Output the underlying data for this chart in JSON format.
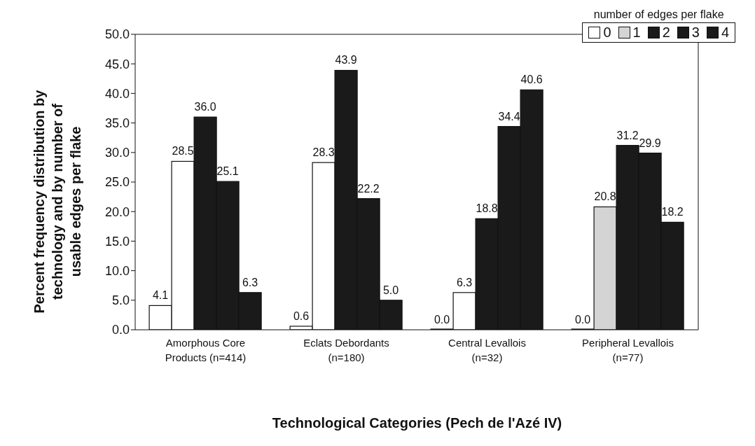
{
  "chart_data": {
    "type": "bar",
    "xlabel": "Technological Categories  (Pech de l'Azé IV)",
    "ylabel": "Percent frequency distribution by technology and by number of usable edges per flake",
    "legend_title": "number of edges per flake",
    "categories": [
      "Amorphous Core\nProducts  (n=414)",
      "Eclats Debordants\n(n=180)",
      "Central Levallois\n(n=32)",
      "Peripheral Levallois\n(n=77)"
    ],
    "series": [
      {
        "name": "0",
        "color": "#ffffff",
        "values": [
          4.1,
          0.6,
          0.0,
          0.0
        ],
        "value_labels": [
          "4.1",
          "0.6",
          "0.0",
          "0.0"
        ]
      },
      {
        "name": "1",
        "color": "#ffffff",
        "colors": [
          "#ffffff",
          "#ffffff",
          "#ffffff",
          "#d4d4d4"
        ],
        "values": [
          28.5,
          28.3,
          6.3,
          20.8
        ],
        "value_labels": [
          "28.5",
          "28.3",
          "6.3",
          "20.8"
        ]
      },
      {
        "name": "2",
        "color": "#1a1a1a",
        "values": [
          36.0,
          43.9,
          18.8,
          31.2
        ],
        "value_labels": [
          "36.0",
          "43.9",
          "18.8",
          "31.2"
        ]
      },
      {
        "name": "3",
        "color": "#1a1a1a",
        "values": [
          25.1,
          22.2,
          34.4,
          29.9
        ],
        "value_labels": [
          "25.1",
          "22.2",
          "34.4",
          "29.9"
        ]
      },
      {
        "name": "4",
        "color": "#1a1a1a",
        "values": [
          6.3,
          5.0,
          40.6,
          18.2
        ],
        "value_labels": [
          "6.3",
          "5.0",
          "40.6",
          "18.2"
        ]
      }
    ],
    "ylim": [
      0,
      50
    ],
    "yticks": [
      {
        "value": 0,
        "label": "0.0"
      },
      {
        "value": 5,
        "label": "5.0"
      },
      {
        "value": 10,
        "label": "10.0"
      },
      {
        "value": 15,
        "label": "15.0"
      },
      {
        "value": 20,
        "label": "20.0"
      },
      {
        "value": 25,
        "label": "25.0"
      },
      {
        "value": 30,
        "label": "30.0"
      },
      {
        "value": 35,
        "label": "35.0"
      },
      {
        "value": 40,
        "label": "40.0"
      },
      {
        "value": 45,
        "label": "45.0"
      },
      {
        "value": 50,
        "label": "50.0"
      }
    ],
    "legend": "top right"
  }
}
